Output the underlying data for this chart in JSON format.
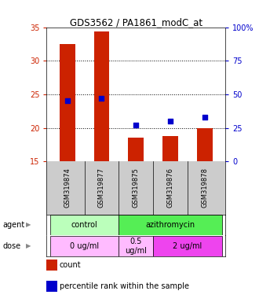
{
  "title": "GDS3562 / PA1861_modC_at",
  "samples": [
    "GSM319874",
    "GSM319877",
    "GSM319875",
    "GSM319876",
    "GSM319878"
  ],
  "counts": [
    32.5,
    34.4,
    18.5,
    18.8,
    20.0
  ],
  "percentiles": [
    45,
    47,
    27,
    30,
    33
  ],
  "ylim_left": [
    15,
    35
  ],
  "ylim_right": [
    0,
    100
  ],
  "yticks_left": [
    15,
    20,
    25,
    30,
    35
  ],
  "yticks_right": [
    0,
    25,
    50,
    75,
    100
  ],
  "bar_color": "#cc2200",
  "dot_color": "#0000cc",
  "agent_labels": [
    {
      "text": "control",
      "span": [
        0,
        2
      ],
      "color": "#bbffbb"
    },
    {
      "text": "azithromycin",
      "span": [
        2,
        5
      ],
      "color": "#55ee55"
    }
  ],
  "dose_labels": [
    {
      "text": "0 ug/ml",
      "span": [
        0,
        2
      ],
      "color": "#ffbbff"
    },
    {
      "text": "0.5\nug/ml",
      "span": [
        2,
        3
      ],
      "color": "#ffbbff"
    },
    {
      "text": "2 ug/ml",
      "span": [
        3,
        5
      ],
      "color": "#ee44ee"
    }
  ],
  "bar_width": 0.45,
  "legend_count_color": "#cc2200",
  "legend_dot_color": "#0000cc",
  "grid_color": "black",
  "tick_color_left": "#cc2200",
  "tick_color_right": "#0000cc",
  "bg_color": "#ffffff",
  "sample_bg_color": "#cccccc"
}
